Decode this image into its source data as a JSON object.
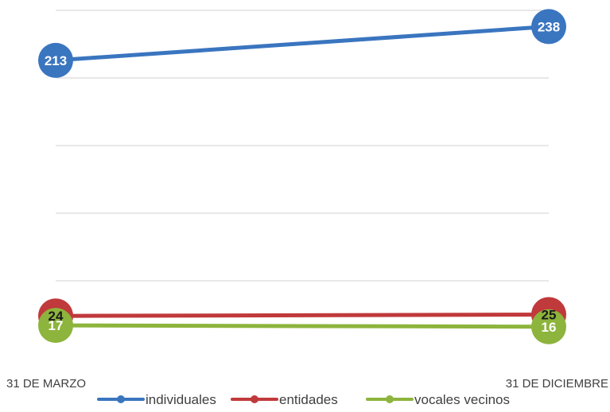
{
  "chart_data": {
    "type": "line",
    "title": "",
    "xlabel": "",
    "ylabel": "",
    "categories": [
      "31 DE MARZO",
      "31 DE DICIEMBRE"
    ],
    "ylim": [
      0,
      250
    ],
    "grid": true,
    "legend": "bottom",
    "series": [
      {
        "name": "individuales",
        "values": [
          213,
          238
        ],
        "color": "#3a75bf",
        "label_color": "#ffffff"
      },
      {
        "name": "entidades",
        "values": [
          24,
          25
        ],
        "color": "#c0393b",
        "label_color": "#1a1a1a"
      },
      {
        "name": "vocales vecinos",
        "values": [
          17,
          16
        ],
        "color": "#8db43c",
        "label_color": "#ffffff"
      }
    ]
  }
}
